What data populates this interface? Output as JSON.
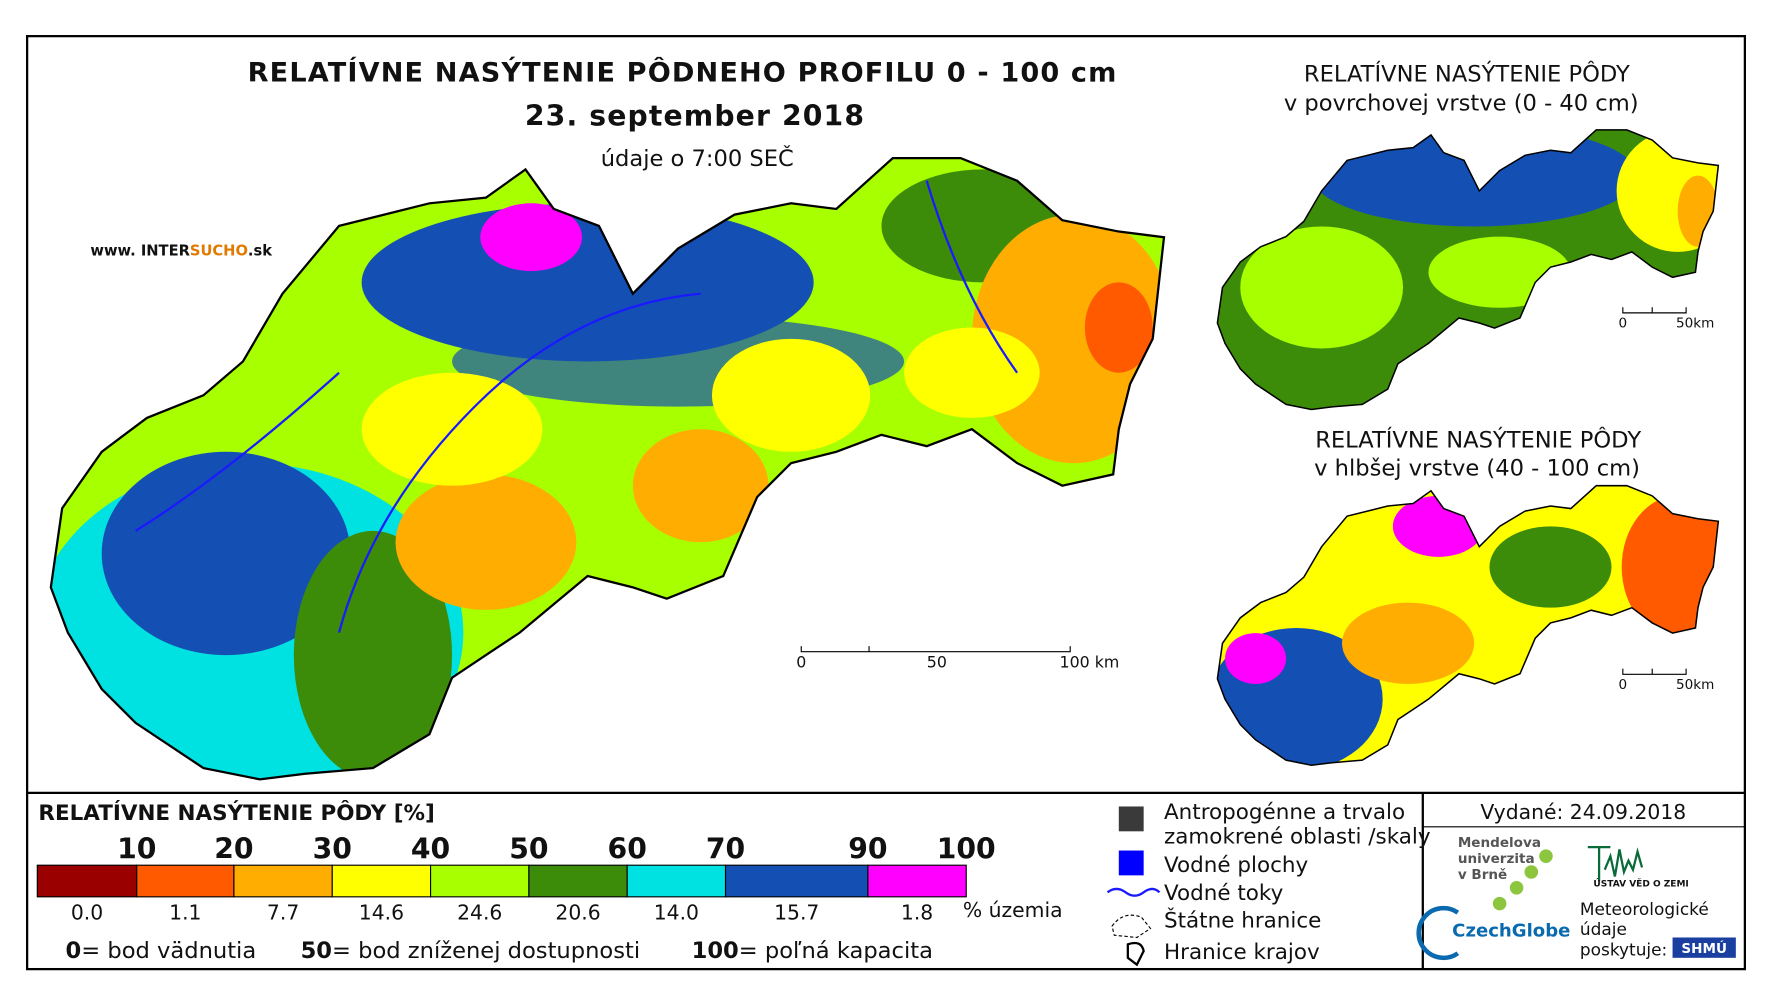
{
  "main_map": {
    "title": "RELATÍVNE NASÝTENIE PÔDNEHO PROFILU 0 - 100 cm",
    "date": "23. september 2018",
    "time_note": "údaje o 7:00 SEČ",
    "web": [
      "www. INTER",
      "SUCHO",
      ".sk"
    ],
    "scale": [
      "0",
      "50",
      "100 km"
    ]
  },
  "inset_surface": {
    "title": "RELATÍVNE NASÝTENIE PÔDY",
    "subtitle": "v povrchovej vrstve (0 - 40 cm)",
    "scale": [
      "0",
      "50km"
    ]
  },
  "inset_deep": {
    "title": "RELATÍVNE NASÝTENIE PÔDY",
    "subtitle": "v hlbšej vrstve (40 - 100 cm)",
    "scale": [
      "0",
      "50km"
    ]
  },
  "legend": {
    "title": "RELATÍVNE NASÝTENIE PÔDY [%]",
    "bounds": [
      "10",
      "20",
      "30",
      "40",
      "50",
      "60",
      "70",
      "90",
      "100"
    ],
    "classes": [
      {
        "color": "#9b0000",
        "share": "0.0"
      },
      {
        "color": "#ff5a00",
        "share": "1.1"
      },
      {
        "color": "#ffad00",
        "share": "7.7"
      },
      {
        "color": "#ffff00",
        "share": "14.6"
      },
      {
        "color": "#a8ff00",
        "share": "24.6"
      },
      {
        "color": "#3c8c0a",
        "share": "20.6"
      },
      {
        "color": "#00e1e1",
        "share": "14.0"
      },
      {
        "color": "#1450b4",
        "share": "15.7"
      },
      {
        "color": "#ff00ff",
        "share": "1.8"
      }
    ],
    "share_unit": "% územia",
    "notes": [
      {
        "key": "0",
        "text": "= bod vädnutia"
      },
      {
        "key": "50",
        "text": "= bod zníženej dostupnosti"
      },
      {
        "key": "100",
        "text": "= poľná kapacita"
      }
    ]
  },
  "symbols": [
    "Antropogénne a trvalo",
    "zamokrené oblasti /skaly",
    "Vodné plochy",
    "Vodné toky",
    "Štátne hranice",
    "Hranice krajov"
  ],
  "issued": "Vydané: 24.09.2018",
  "logos": {
    "mendel": [
      "Mendelova",
      "univerzita",
      "v Brně"
    ],
    "czechglobe": "CzechGlobe",
    "ustav": "ÚSTAV VĚD O ZEMI",
    "meteo": [
      "Meteorologické",
      "údaje",
      "poskytuje:"
    ],
    "shmu": "SHMÚ"
  }
}
